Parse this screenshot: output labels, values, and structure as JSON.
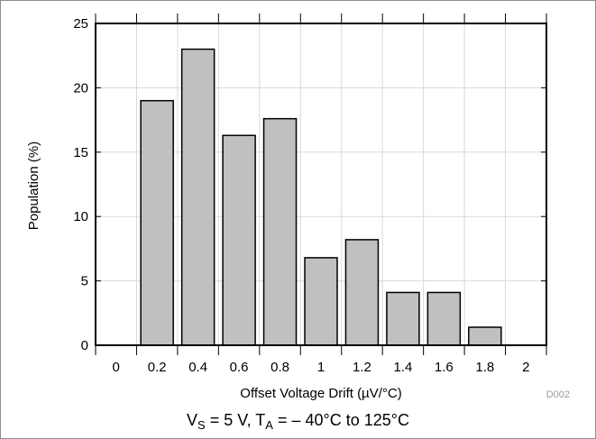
{
  "chart_data": {
    "type": "bar",
    "categories": [
      "0",
      "0.2",
      "0.4",
      "0.6",
      "0.8",
      "1",
      "1.2",
      "1.4",
      "1.6",
      "1.8",
      "2"
    ],
    "values": [
      0,
      19,
      23,
      16.3,
      17.6,
      6.8,
      8.2,
      4.1,
      4.1,
      1.4,
      0
    ],
    "xlabel": "Offset Voltage Drift (µV/°C)",
    "ylabel": "Population (%)",
    "ylim": [
      0,
      25
    ],
    "yticks": [
      "0",
      "5",
      "10",
      "15",
      "20",
      "25"
    ],
    "grid": true,
    "bar_color": "#c0c0c0",
    "bar_edge_color": "#000000",
    "grid_color": "#d9d9d9",
    "figure_id": "D002"
  },
  "caption": {
    "v_main": "V",
    "v_sub": "S",
    "eq1": " = 5 V, T",
    "t_sub": "A",
    "rest": " =  ‒ 40°C to 125°C"
  }
}
